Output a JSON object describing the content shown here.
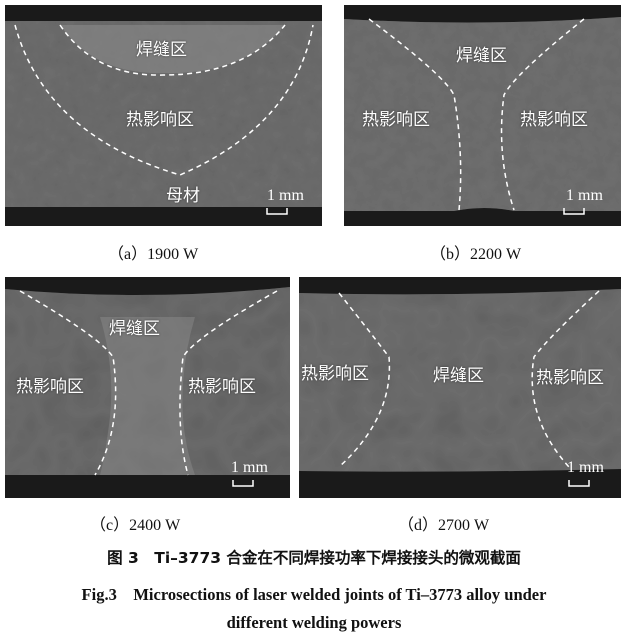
{
  "panels": [
    {
      "label": "（a）1900 W",
      "zones": [
        "焊缝区",
        "热影响区",
        "母材"
      ],
      "scale": "1 mm"
    },
    {
      "label": "（b）2200 W",
      "zones": [
        "焊缝区",
        "热影响区",
        "热影响区"
      ],
      "scale": "1 mm"
    },
    {
      "label": "（c）2400 W",
      "zones": [
        "焊缝区",
        "热影响区",
        "热影响区"
      ],
      "scale": "1 mm"
    },
    {
      "label": "（d）2700 W",
      "zones": [
        "焊缝区",
        "热影响区",
        "热影响区"
      ],
      "scale": "1 mm"
    }
  ],
  "caption": {
    "zh": "图 3　Ti–3773 合金在不同焊接功率下焊接接头的微观截面",
    "en_line1": "Fig.3　Microsections of laser welded joints of Ti–3773 alloy under",
    "en_line2": "different welding powers"
  }
}
